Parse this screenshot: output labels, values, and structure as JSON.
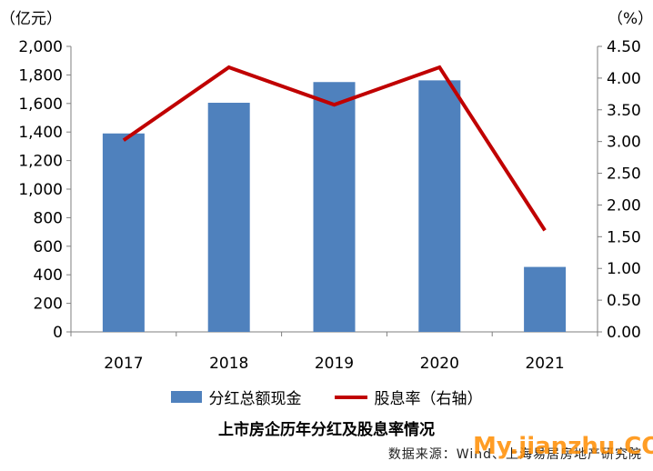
{
  "left_unit": "（亿元）",
  "right_unit": "（%）",
  "caption": "上市房企历年分红及股息率情况",
  "source": "数据来源：Wind、上海易居房地产研究院",
  "watermark": "My.jianzhu.COM",
  "colors": {
    "bar": "#4f81bd",
    "line": "#c00000",
    "axis": "#7f7f7f"
  },
  "chart_data": {
    "type": "bar",
    "categories": [
      "2017",
      "2018",
      "2019",
      "2020",
      "2021"
    ],
    "series": [
      {
        "name": "分红总额现金",
        "type": "bar",
        "axis": "left",
        "values": [
          1390,
          1605,
          1750,
          1762,
          455
        ]
      },
      {
        "name": "股息率（右轴）",
        "type": "line",
        "axis": "right",
        "values": [
          3.02,
          4.17,
          3.58,
          4.17,
          1.6
        ]
      }
    ],
    "ylim": [
      0,
      2000
    ],
    "y_ticks": [
      "0",
      "200",
      "400",
      "600",
      "800",
      "1,000",
      "1,200",
      "1,400",
      "1,600",
      "1,800",
      "2,000"
    ],
    "y2lim": [
      0,
      4.5
    ],
    "y2_ticks": [
      "0.00",
      "0.50",
      "1.00",
      "1.50",
      "2.00",
      "2.50",
      "3.00",
      "3.50",
      "4.00",
      "4.50"
    ],
    "grid": false,
    "legend_position": "bottom"
  }
}
